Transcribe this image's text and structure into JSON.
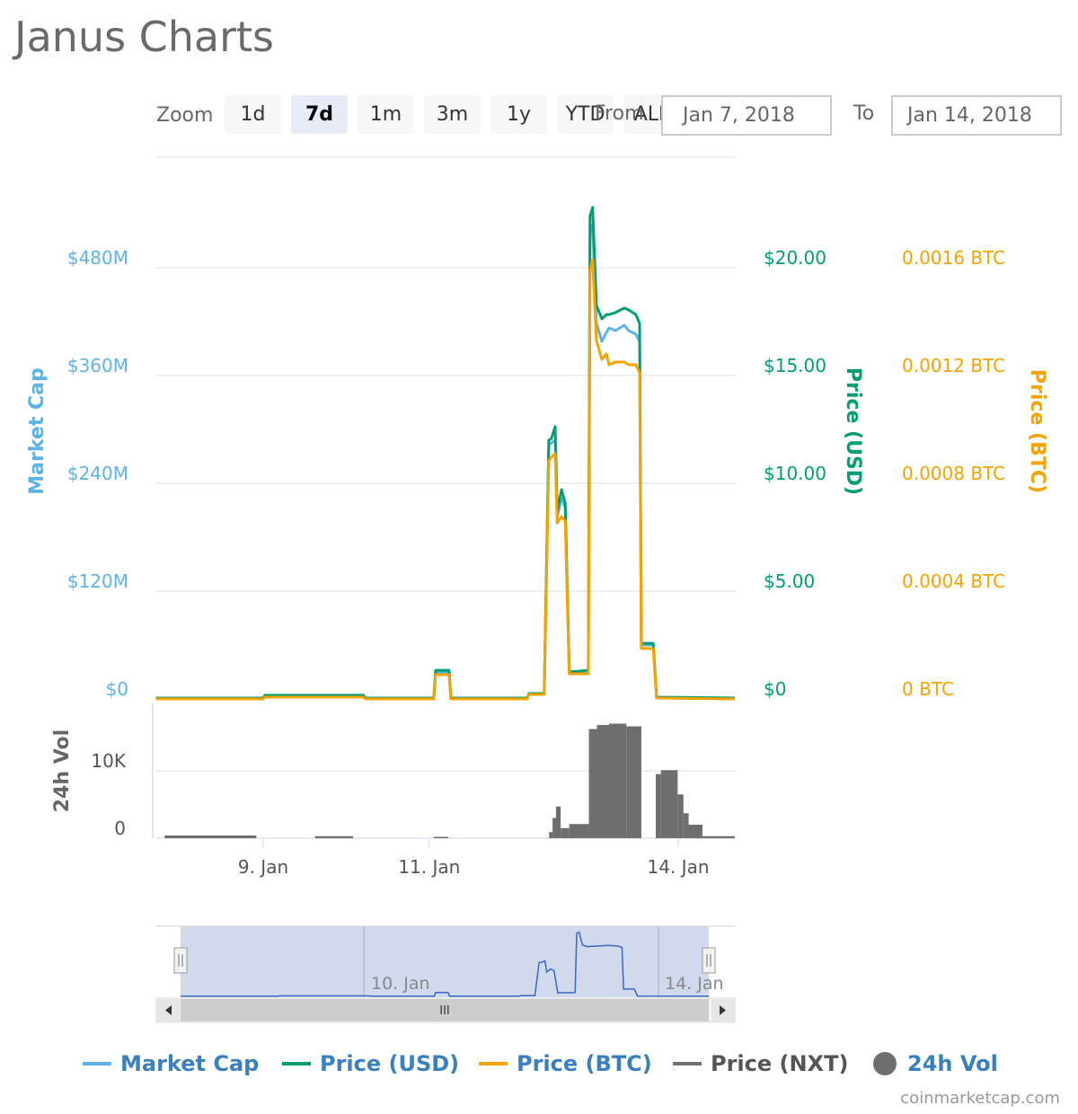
{
  "title": "Janus Charts",
  "toolbar": {
    "zoom_label": "Zoom",
    "buttons": [
      "1d",
      "7d",
      "1m",
      "3m",
      "1y",
      "YTD",
      "ALL"
    ],
    "active": "7d",
    "from_label": "From",
    "from_value": "Jan 7, 2018",
    "to_label": "To",
    "to_value": "Jan 14, 2018"
  },
  "colors": {
    "market_cap": "#5cb3e6",
    "price_usd": "#009e73",
    "price_btc": "#f5a300",
    "price_nxt": "#707070",
    "volume": "#6e6e6e",
    "navigator": "#3a66c4"
  },
  "chart_data": {
    "type": "line",
    "xlim": [
      "2018-01-07T17:00",
      "2018-01-14T16:20"
    ],
    "x_ticks": [
      {
        "label": "9. Jan",
        "date": "2018-01-09T00:00"
      },
      {
        "label": "11. Jan",
        "date": "2018-01-11T00:00"
      },
      {
        "label": "14. Jan",
        "date": "2018-01-14T00:00"
      }
    ],
    "grid": true,
    "axes": {
      "market_cap": {
        "label": "Market Cap",
        "ylim": [
          0,
          600
        ],
        "ticks": [
          "$0",
          "$120M",
          "$240M",
          "$360M",
          "$480M"
        ],
        "tick_values": [
          0,
          120,
          240,
          360,
          480
        ]
      },
      "price_usd": {
        "label": "Price (USD)",
        "ylim": [
          0,
          25
        ],
        "ticks": [
          "$0",
          "$5.00",
          "$10.00",
          "$15.00",
          "$20.00"
        ]
      },
      "price_btc": {
        "label": "Price (BTC)",
        "ylim": [
          0,
          0.002
        ],
        "ticks": [
          "0 BTC",
          "0.0004 BTC",
          "0.0008 BTC",
          "0.0012 BTC",
          "0.0016 BTC"
        ]
      },
      "volume": {
        "label": "24h Vol",
        "ylim": [
          0,
          20000
        ],
        "ticks": [
          "0",
          "10K"
        ],
        "tick_values": [
          0,
          10000
        ]
      }
    },
    "x": [
      "2018-01-07T17:00",
      "2018-01-09T00:00",
      "2018-01-09T00:30",
      "2018-01-10T05:00",
      "2018-01-10T05:30",
      "2018-01-11T01:20",
      "2018-01-11T01:50",
      "2018-01-11T05:45",
      "2018-01-11T06:15",
      "2018-01-12T04:20",
      "2018-01-12T04:50",
      "2018-01-12T09:15",
      "2018-01-12T10:35",
      "2018-01-12T11:20",
      "2018-01-12T12:25",
      "2018-01-12T13:00",
      "2018-01-12T14:15",
      "2018-01-12T15:20",
      "2018-01-12T16:30",
      "2018-01-12T22:00",
      "2018-01-12T22:30",
      "2018-01-12T23:15",
      "2018-01-13T00:20",
      "2018-01-13T01:55",
      "2018-01-13T03:15",
      "2018-01-13T04:00",
      "2018-01-13T05:50",
      "2018-01-13T08:25",
      "2018-01-13T09:40",
      "2018-01-13T11:45",
      "2018-01-13T12:50",
      "2018-01-13T13:20",
      "2018-01-13T16:45",
      "2018-01-13T17:45",
      "2018-01-14T16:20"
    ],
    "series": [
      {
        "name": "Market Cap",
        "axis": "market_cap",
        "unit": "USD millions",
        "values": [
          1,
          1,
          3,
          3,
          1,
          1,
          30,
          30,
          1,
          1,
          5,
          5,
          283,
          285,
          288,
          203,
          223,
          213,
          29,
          30,
          518,
          528,
          418,
          398,
          408,
          413,
          410,
          416,
          410,
          406,
          398,
          60,
          60,
          2,
          1
        ]
      },
      {
        "name": "Price (USD)",
        "axis": "price_usd",
        "values": [
          0.04,
          0.04,
          0.17,
          0.17,
          0.04,
          0.04,
          1.33,
          1.33,
          0.04,
          0.04,
          0.25,
          0.25,
          12.0,
          12.08,
          12.63,
          8.67,
          9.71,
          9.08,
          1.25,
          1.33,
          22.4,
          22.8,
          18.25,
          17.63,
          17.83,
          17.83,
          17.92,
          18.13,
          18.04,
          17.83,
          17.42,
          2.58,
          2.58,
          0.08,
          0.04
        ]
      },
      {
        "name": "Price (BTC)",
        "axis": "price_btc",
        "values": [
          0,
          0,
          6.7e-06,
          6.7e-06,
          0,
          0,
          9e-05,
          9e-05,
          0,
          0,
          1.67e-05,
          1.67e-05,
          0.000883,
          0.000897,
          0.00091,
          0.000653,
          0.000677,
          0.00066,
          9.33e-05,
          9.33e-05,
          0.00159,
          0.00163,
          0.00133,
          0.00126,
          0.00128,
          0.00124,
          0.00125,
          0.00125,
          0.00124,
          0.00124,
          0.00121,
          0.000187,
          0.000187,
          3.3e-06,
          0
        ]
      }
    ],
    "volume": [
      {
        "start": "2018-01-07T19:30",
        "end": "2018-01-08T22:00",
        "value": 400
      },
      {
        "start": "2018-01-09T15:00",
        "end": "2018-01-10T02:00",
        "value": 300
      },
      {
        "start": "2018-01-11T01:20",
        "end": "2018-01-11T05:30",
        "value": 200
      },
      {
        "start": "2018-01-12T10:40",
        "end": "2018-01-12T11:40",
        "value": 900
      },
      {
        "start": "2018-01-12T11:40",
        "end": "2018-01-12T12:40",
        "value": 3000
      },
      {
        "start": "2018-01-12T12:40",
        "end": "2018-01-12T14:00",
        "value": 4700
      },
      {
        "start": "2018-01-12T14:00",
        "end": "2018-01-12T16:30",
        "value": 1500
      },
      {
        "start": "2018-01-12T16:30",
        "end": "2018-01-12T22:10",
        "value": 2100
      },
      {
        "start": "2018-01-12T22:10",
        "end": "2018-01-13T00:30",
        "value": 16200
      },
      {
        "start": "2018-01-13T00:30",
        "end": "2018-01-13T04:00",
        "value": 16800
      },
      {
        "start": "2018-01-13T04:00",
        "end": "2018-01-13T09:00",
        "value": 17000
      },
      {
        "start": "2018-01-13T09:00",
        "end": "2018-01-13T13:20",
        "value": 16600
      },
      {
        "start": "2018-01-13T17:30",
        "end": "2018-01-13T19:00",
        "value": 9500
      },
      {
        "start": "2018-01-13T19:00",
        "end": "2018-01-13T23:50",
        "value": 10100
      },
      {
        "start": "2018-01-13T23:50",
        "end": "2018-01-14T01:30",
        "value": 6500
      },
      {
        "start": "2018-01-14T01:30",
        "end": "2018-01-14T03:00",
        "value": 3700
      },
      {
        "start": "2018-01-14T03:00",
        "end": "2018-01-14T07:00",
        "value": 2000
      },
      {
        "start": "2018-01-14T07:00",
        "end": "2018-01-14T16:20",
        "value": 300
      }
    ]
  },
  "navigator": {
    "labels": [
      "10. Jan",
      "14. Jan"
    ],
    "scroll_grip": "III"
  },
  "legend": [
    {
      "label": "Market Cap",
      "color": "#5cb3e6",
      "symbol": "line"
    },
    {
      "label": "Price (USD)",
      "color": "#009e73",
      "symbol": "line"
    },
    {
      "label": "Price (BTC)",
      "color": "#f5a300",
      "symbol": "line"
    },
    {
      "label": "Price (NXT)",
      "color": "#707070",
      "symbol": "line"
    },
    {
      "label": "24h Vol",
      "color": "#6e6e6e",
      "symbol": "circle"
    }
  ],
  "credit": "coinmarketcap.com"
}
